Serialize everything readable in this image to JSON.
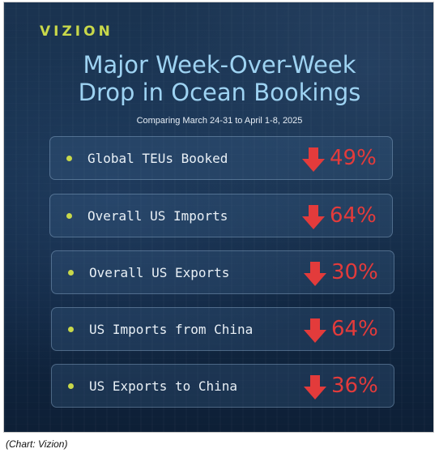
{
  "brand": "VIZION",
  "title_line1": "Major Week-Over-Week",
  "title_line2": "Drop in Ocean Bookings",
  "subtitle": "Comparing March 24-31 to April 1-8, 2025",
  "rows": [
    {
      "label": "Global TEUs Booked",
      "value": "49%"
    },
    {
      "label": "Overall US Imports",
      "value": "64%"
    },
    {
      "label": "Overall US Exports",
      "value": "30%"
    },
    {
      "label": "US Imports from China",
      "value": "64%"
    },
    {
      "label": "US Exports to China",
      "value": "36%"
    }
  ],
  "icons": {
    "bullet": "bullet-dot-icon",
    "arrow": "down-arrow-icon"
  },
  "colors": {
    "accent": "#c8d84a",
    "title": "#9ed3f2",
    "down": "#e33b3b",
    "background": "#16304c"
  },
  "caption": "(Chart: Vizion)"
}
